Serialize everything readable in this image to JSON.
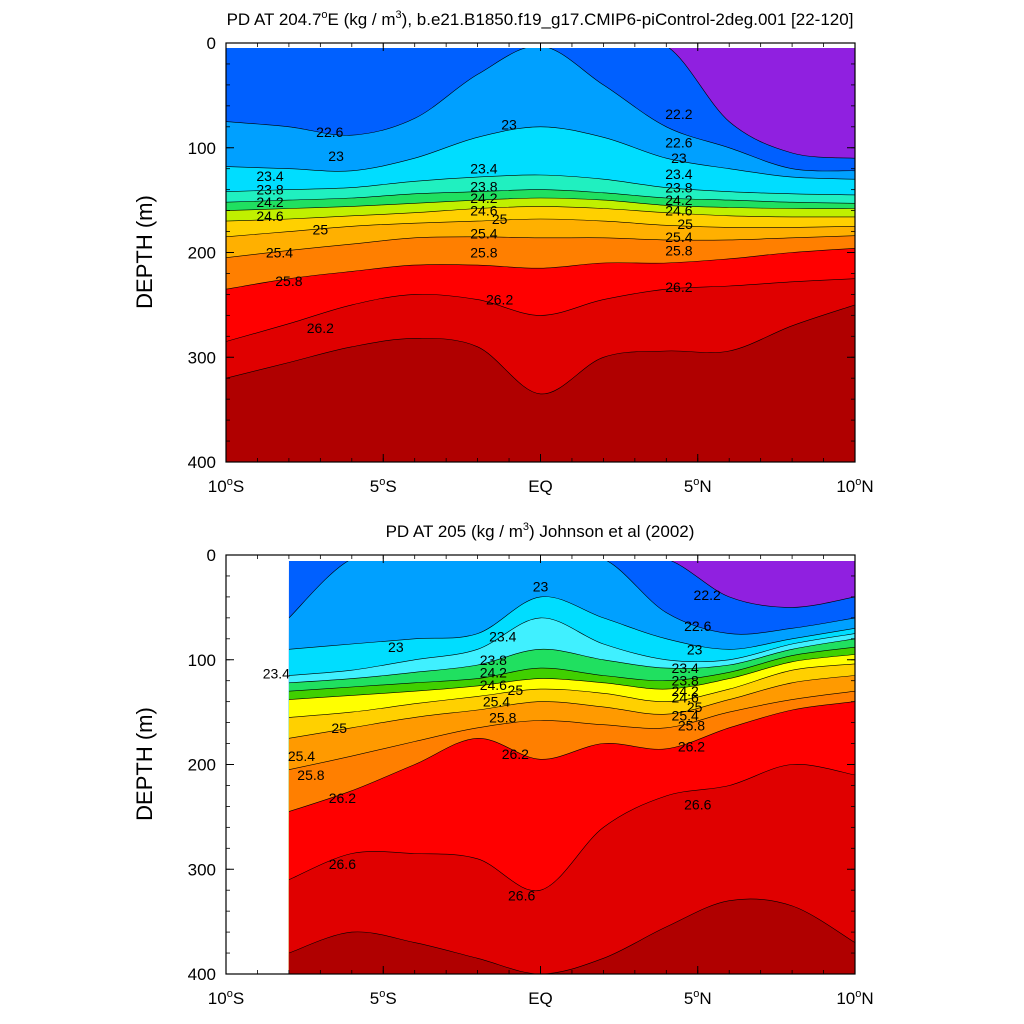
{
  "colors": [
    "#9020e0",
    "#0020ff",
    "#0060ff",
    "#00a0ff",
    "#00c8ff",
    "#00ddff",
    "#40f0ff",
    "#20f0c0",
    "#20e060",
    "#40d000",
    "#c0f000",
    "#ffff00",
    "#ffd000",
    "#ffb000",
    "#ff9a00",
    "#ff7f00",
    "#ff5000",
    "#ff0000",
    "#e00000",
    "#c80000",
    "#b00000"
  ],
  "chart_data": [
    {
      "type": "contour",
      "title_main": "PD AT 204.7",
      "title_deg": "o",
      "title_mid": "E (kg / m",
      "title_sup": "3",
      "title_end": "), b.e21.B1850.f19_g17.CMIP6-piControl-2deg.001 [22-120]",
      "ylabel": "DEPTH (m)",
      "ylim": [
        0,
        400
      ],
      "yticks": [
        "0",
        "100",
        "200",
        "300",
        "400"
      ],
      "xlim": [
        -10,
        10
      ],
      "xticks": [
        {
          "v": -10,
          "main": "10",
          "sup": "o",
          "suf": "S"
        },
        {
          "v": -5,
          "main": "5",
          "sup": "o",
          "suf": "S"
        },
        {
          "v": 0,
          "main": "EQ",
          "sup": "",
          "suf": ""
        },
        {
          "v": 5,
          "main": "5",
          "sup": "o",
          "suf": "N"
        },
        {
          "v": 10,
          "main": "10",
          "sup": "o",
          "suf": "N"
        }
      ],
      "data_lon_range": [
        -10,
        10
      ],
      "levels": [
        22.2,
        22.4,
        22.6,
        22.8,
        23.0,
        23.2,
        23.4,
        23.6,
        23.8,
        24.0,
        24.2,
        24.4,
        24.6,
        24.8,
        25.0,
        25.2,
        25.4,
        25.6,
        25.8,
        26.0,
        26.2,
        26.4
      ],
      "isolines_lon": [
        -10,
        -8,
        -6,
        -4,
        -2,
        0,
        2,
        4,
        6,
        8,
        10
      ],
      "isolines": [
        {
          "level": 22.2,
          "depth": [
            null,
            null,
            null,
            null,
            null,
            null,
            null,
            null,
            75,
            105,
            110
          ]
        },
        {
          "level": 22.6,
          "depth": [
            75,
            80,
            88,
            72,
            30,
            null,
            40,
            80,
            100,
            120,
            122
          ]
        },
        {
          "level": 23.0,
          "depth": [
            118,
            120,
            122,
            110,
            90,
            80,
            90,
            110,
            120,
            128,
            130
          ]
        },
        {
          "level": 23.4,
          "depth": [
            142,
            140,
            138,
            132,
            128,
            126,
            130,
            138,
            142,
            144,
            145
          ]
        },
        {
          "level": 23.8,
          "depth": [
            152,
            150,
            148,
            144,
            142,
            140,
            143,
            148,
            150,
            152,
            153
          ]
        },
        {
          "level": 24.2,
          "depth": [
            160,
            158,
            156,
            153,
            150,
            148,
            150,
            155,
            157,
            158,
            158
          ]
        },
        {
          "level": 24.6,
          "depth": [
            170,
            168,
            165,
            162,
            158,
            156,
            158,
            162,
            165,
            166,
            166
          ]
        },
        {
          "level": 25.0,
          "depth": [
            185,
            180,
            175,
            172,
            170,
            168,
            170,
            174,
            176,
            176,
            175
          ]
        },
        {
          "level": 25.4,
          "depth": [
            205,
            198,
            192,
            186,
            185,
            186,
            186,
            188,
            188,
            186,
            184
          ]
        },
        {
          "level": 25.8,
          "depth": [
            235,
            225,
            218,
            212,
            212,
            215,
            210,
            210,
            206,
            200,
            196
          ]
        },
        {
          "level": 26.2,
          "depth": [
            285,
            268,
            250,
            240,
            245,
            260,
            245,
            235,
            232,
            228,
            225
          ]
        },
        {
          "level": 26.4,
          "depth": [
            320,
            305,
            290,
            282,
            290,
            335,
            300,
            294,
            294,
            270,
            250
          ]
        }
      ],
      "labels": [
        {
          "text": "22.6",
          "lon": -6.7,
          "depth": 85
        },
        {
          "text": "23",
          "lon": -6.5,
          "depth": 108
        },
        {
          "text": "23.4",
          "lon": -8.6,
          "depth": 127
        },
        {
          "text": "23.8",
          "lon": -8.6,
          "depth": 140
        },
        {
          "text": "24.2",
          "lon": -8.6,
          "depth": 152
        },
        {
          "text": "24.6",
          "lon": -8.6,
          "depth": 165
        },
        {
          "text": "25",
          "lon": -7.0,
          "depth": 178
        },
        {
          "text": "25.4",
          "lon": -8.3,
          "depth": 200
        },
        {
          "text": "25.8",
          "lon": -8.0,
          "depth": 227
        },
        {
          "text": "26.2",
          "lon": -7.0,
          "depth": 272
        },
        {
          "text": "23",
          "lon": -1.0,
          "depth": 78
        },
        {
          "text": "23.4",
          "lon": -1.8,
          "depth": 120
        },
        {
          "text": "23.8",
          "lon": -1.8,
          "depth": 137
        },
        {
          "text": "24.2",
          "lon": -1.8,
          "depth": 148
        },
        {
          "text": "24.6",
          "lon": -1.8,
          "depth": 160
        },
        {
          "text": "25",
          "lon": -1.3,
          "depth": 168
        },
        {
          "text": "25.4",
          "lon": -1.8,
          "depth": 182
        },
        {
          "text": "25.8",
          "lon": -1.8,
          "depth": 200
        },
        {
          "text": "26.2",
          "lon": -1.3,
          "depth": 245
        },
        {
          "text": "22.2",
          "lon": 4.4,
          "depth": 68
        },
        {
          "text": "22.6",
          "lon": 4.4,
          "depth": 95
        },
        {
          "text": "23",
          "lon": 4.4,
          "depth": 110
        },
        {
          "text": "23.4",
          "lon": 4.4,
          "depth": 125
        },
        {
          "text": "23.8",
          "lon": 4.4,
          "depth": 138
        },
        {
          "text": "24.2",
          "lon": 4.4,
          "depth": 150
        },
        {
          "text": "24.6",
          "lon": 4.4,
          "depth": 160
        },
        {
          "text": "25",
          "lon": 4.6,
          "depth": 173
        },
        {
          "text": "25.4",
          "lon": 4.4,
          "depth": 185
        },
        {
          "text": "25.8",
          "lon": 4.4,
          "depth": 198
        },
        {
          "text": "26.2",
          "lon": 4.4,
          "depth": 233
        }
      ]
    },
    {
      "type": "contour",
      "title_main": "PD AT 205 (kg / m",
      "title_deg": "",
      "title_mid": "",
      "title_sup": "3",
      "title_end": ") Johnson et al (2002)",
      "ylabel": "DEPTH (m)",
      "ylim": [
        0,
        400
      ],
      "yticks": [
        "0",
        "100",
        "200",
        "300",
        "400"
      ],
      "xlim": [
        -10,
        10
      ],
      "xticks": [
        {
          "v": -10,
          "main": "10",
          "sup": "o",
          "suf": "S"
        },
        {
          "v": -5,
          "main": "5",
          "sup": "o",
          "suf": "S"
        },
        {
          "v": 0,
          "main": "EQ",
          "sup": "",
          "suf": ""
        },
        {
          "v": 5,
          "main": "5",
          "sup": "o",
          "suf": "N"
        },
        {
          "v": 10,
          "main": "10",
          "sup": "o",
          "suf": "N"
        }
      ],
      "data_lon_range": [
        -8,
        10
      ],
      "levels": [
        22.2,
        22.4,
        22.6,
        22.8,
        23.0,
        23.2,
        23.4,
        23.6,
        23.8,
        24.0,
        24.2,
        24.4,
        24.6,
        24.8,
        25.0,
        25.2,
        25.4,
        25.6,
        25.8,
        26.0,
        26.2,
        26.4,
        26.6,
        26.8
      ],
      "isolines_lon": [
        -8,
        -6,
        -4,
        -2,
        0,
        2,
        4,
        6,
        8,
        10
      ],
      "isolines": [
        {
          "level": 22.2,
          "depth": [
            null,
            null,
            null,
            null,
            null,
            null,
            null,
            40,
            50,
            40
          ]
        },
        {
          "level": 22.6,
          "depth": [
            60,
            null,
            null,
            null,
            null,
            null,
            55,
            75,
            70,
            60
          ]
        },
        {
          "level": 23.0,
          "depth": [
            90,
            85,
            80,
            75,
            40,
            60,
            80,
            90,
            80,
            70
          ]
        },
        {
          "level": 23.4,
          "depth": [
            115,
            110,
            100,
            90,
            60,
            85,
            100,
            100,
            85,
            75
          ]
        },
        {
          "level": 23.8,
          "depth": [
            122,
            118,
            112,
            105,
            90,
            100,
            108,
            105,
            90,
            80
          ]
        },
        {
          "level": 24.2,
          "depth": [
            130,
            126,
            122,
            118,
            108,
            115,
            120,
            112,
            96,
            88
          ]
        },
        {
          "level": 24.6,
          "depth": [
            138,
            134,
            130,
            125,
            118,
            122,
            128,
            118,
            102,
            95
          ]
        },
        {
          "level": 25.0,
          "depth": [
            155,
            150,
            142,
            135,
            128,
            132,
            140,
            128,
            110,
            104
          ]
        },
        {
          "level": 25.4,
          "depth": [
            175,
            165,
            155,
            148,
            140,
            145,
            152,
            138,
            122,
            115
          ]
        },
        {
          "level": 25.8,
          "depth": [
            205,
            192,
            178,
            165,
            158,
            162,
            165,
            150,
            138,
            130
          ]
        },
        {
          "level": 26.2,
          "depth": [
            245,
            225,
            200,
            175,
            195,
            180,
            185,
            165,
            148,
            140
          ]
        },
        {
          "level": 26.6,
          "depth": [
            310,
            285,
            285,
            290,
            320,
            260,
            230,
            220,
            200,
            210
          ]
        },
        {
          "level": 26.8,
          "depth": [
            380,
            360,
            370,
            385,
            400,
            385,
            355,
            330,
            335,
            370
          ]
        }
      ],
      "labels": [
        {
          "text": "23.4",
          "lon": -8.4,
          "depth": 113
        },
        {
          "text": "23",
          "lon": -4.6,
          "depth": 88
        },
        {
          "text": "25",
          "lon": -6.4,
          "depth": 165
        },
        {
          "text": "25.4",
          "lon": -7.6,
          "depth": 192
        },
        {
          "text": "25.8",
          "lon": -7.3,
          "depth": 210
        },
        {
          "text": "26.2",
          "lon": -6.3,
          "depth": 232
        },
        {
          "text": "26.6",
          "lon": -6.3,
          "depth": 295
        },
        {
          "text": "23",
          "lon": 0.0,
          "depth": 30
        },
        {
          "text": "23.4",
          "lon": -1.2,
          "depth": 78
        },
        {
          "text": "23.8",
          "lon": -1.5,
          "depth": 100
        },
        {
          "text": "24.2",
          "lon": -1.5,
          "depth": 112
        },
        {
          "text": "24.6",
          "lon": -1.5,
          "depth": 124
        },
        {
          "text": "25",
          "lon": -0.8,
          "depth": 129
        },
        {
          "text": "25.4",
          "lon": -1.4,
          "depth": 140
        },
        {
          "text": "25.8",
          "lon": -1.2,
          "depth": 155
        },
        {
          "text": "26.2",
          "lon": -0.8,
          "depth": 190
        },
        {
          "text": "26.6",
          "lon": -0.6,
          "depth": 325
        },
        {
          "text": "22.2",
          "lon": 5.3,
          "depth": 38
        },
        {
          "text": "22.6",
          "lon": 5.0,
          "depth": 68
        },
        {
          "text": "23",
          "lon": 4.9,
          "depth": 90
        },
        {
          "text": "23.4",
          "lon": 4.6,
          "depth": 108
        },
        {
          "text": "23.8",
          "lon": 4.6,
          "depth": 120
        },
        {
          "text": "24.2",
          "lon": 4.6,
          "depth": 130
        },
        {
          "text": "24.6",
          "lon": 4.6,
          "depth": 136
        },
        {
          "text": "25",
          "lon": 4.9,
          "depth": 145
        },
        {
          "text": "25.4",
          "lon": 4.6,
          "depth": 153
        },
        {
          "text": "25.8",
          "lon": 4.8,
          "depth": 163
        },
        {
          "text": "26.2",
          "lon": 4.8,
          "depth": 183
        },
        {
          "text": "26.6",
          "lon": 5.0,
          "depth": 238
        }
      ]
    }
  ]
}
